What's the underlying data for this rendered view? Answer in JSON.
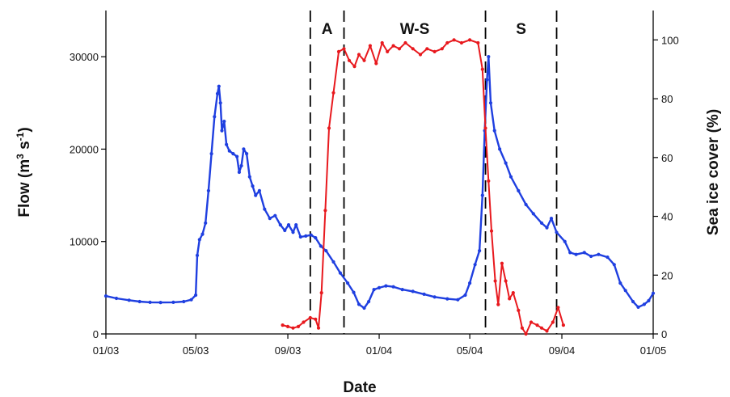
{
  "chart_data": {
    "type": "line",
    "xlabel": "Date",
    "ylabel_left": "Flow (m³ s⁻¹)",
    "ylabel_left_base": "Flow (m",
    "ylabel_left_sup1": "3",
    "ylabel_left_mid": " s",
    "ylabel_left_sup2": "-1",
    "ylabel_left_end": ")",
    "ylabel_right": "Sea ice cover (%)",
    "x_ticks": [
      "01/03",
      "05/03",
      "09/03",
      "01/04",
      "05/04",
      "09/04",
      "01/05"
    ],
    "x_tick_dates": [
      "2003-01-01",
      "2003-05-01",
      "2003-09-01",
      "2004-01-01",
      "2004-05-01",
      "2004-09-01",
      "2005-01-01"
    ],
    "xlim": [
      "2003-01-01",
      "2005-01-01"
    ],
    "y_left_ticks": [
      "0",
      "10000",
      "20000",
      "30000"
    ],
    "y_left_lim": [
      0,
      35000
    ],
    "y_right_ticks": [
      "0",
      "20",
      "40",
      "60",
      "80",
      "100"
    ],
    "y_right_lim": [
      0,
      110
    ],
    "grid": false,
    "periods": [
      {
        "label": "A",
        "start": "2003-10-01",
        "end": "2003-11-15"
      },
      {
        "label": "W-S",
        "start": "2003-11-15",
        "end": "2004-05-22"
      },
      {
        "label": "S",
        "start": "2004-05-22",
        "end": "2004-08-25"
      }
    ],
    "dividers": [
      "2003-10-01",
      "2003-11-15",
      "2004-05-22",
      "2004-08-25"
    ],
    "series": [
      {
        "name": "",
        "axis": "left",
        "color": "#1f3fe0",
        "marker": "dot",
        "points": [
          [
            "2003-01-01",
            4100
          ],
          [
            "2003-01-15",
            3850
          ],
          [
            "2003-02-01",
            3650
          ],
          [
            "2003-02-15",
            3500
          ],
          [
            "2003-03-01",
            3420
          ],
          [
            "2003-03-15",
            3400
          ],
          [
            "2003-04-01",
            3420
          ],
          [
            "2003-04-15",
            3500
          ],
          [
            "2003-04-25",
            3700
          ],
          [
            "2003-05-01",
            4200
          ],
          [
            "2003-05-03",
            8500
          ],
          [
            "2003-05-06",
            10200
          ],
          [
            "2003-05-10",
            10800
          ],
          [
            "2003-05-14",
            12000
          ],
          [
            "2003-05-18",
            15500
          ],
          [
            "2003-05-22",
            19500
          ],
          [
            "2003-05-26",
            23500
          ],
          [
            "2003-05-30",
            26000
          ],
          [
            "2003-06-01",
            26800
          ],
          [
            "2003-06-03",
            25000
          ],
          [
            "2003-06-05",
            22000
          ],
          [
            "2003-06-08",
            23000
          ],
          [
            "2003-06-11",
            20500
          ],
          [
            "2003-06-15",
            19800
          ],
          [
            "2003-06-20",
            19500
          ],
          [
            "2003-06-25",
            19200
          ],
          [
            "2003-06-28",
            17500
          ],
          [
            "2003-07-01",
            18200
          ],
          [
            "2003-07-04",
            20000
          ],
          [
            "2003-07-08",
            19500
          ],
          [
            "2003-07-12",
            17000
          ],
          [
            "2003-07-16",
            16000
          ],
          [
            "2003-07-20",
            15000
          ],
          [
            "2003-07-25",
            15500
          ],
          [
            "2003-08-01",
            13500
          ],
          [
            "2003-08-08",
            12500
          ],
          [
            "2003-08-15",
            12800
          ],
          [
            "2003-08-22",
            11800
          ],
          [
            "2003-08-28",
            11200
          ],
          [
            "2003-09-02",
            11800
          ],
          [
            "2003-09-08",
            11000
          ],
          [
            "2003-09-12",
            11800
          ],
          [
            "2003-09-18",
            10500
          ],
          [
            "2003-09-25",
            10600
          ],
          [
            "2003-10-02",
            10700
          ],
          [
            "2003-10-08",
            10400
          ],
          [
            "2003-10-15",
            9500
          ],
          [
            "2003-10-22",
            9000
          ],
          [
            "2003-11-01",
            7800
          ],
          [
            "2003-11-10",
            6600
          ],
          [
            "2003-11-20",
            5500
          ],
          [
            "2003-11-28",
            4500
          ],
          [
            "2003-12-05",
            3200
          ],
          [
            "2003-12-12",
            2800
          ],
          [
            "2003-12-18",
            3500
          ],
          [
            "2003-12-25",
            4800
          ],
          [
            "2004-01-01",
            5000
          ],
          [
            "2004-01-10",
            5200
          ],
          [
            "2004-01-20",
            5100
          ],
          [
            "2004-02-01",
            4800
          ],
          [
            "2004-02-15",
            4600
          ],
          [
            "2004-03-01",
            4300
          ],
          [
            "2004-03-15",
            4000
          ],
          [
            "2004-04-01",
            3800
          ],
          [
            "2004-04-15",
            3700
          ],
          [
            "2004-04-25",
            4200
          ],
          [
            "2004-05-01",
            5500
          ],
          [
            "2004-05-08",
            7500
          ],
          [
            "2004-05-14",
            9000
          ],
          [
            "2004-05-18",
            15000
          ],
          [
            "2004-05-21",
            22000
          ],
          [
            "2004-05-24",
            27500
          ],
          [
            "2004-05-26",
            30000
          ],
          [
            "2004-05-29",
            25000
          ],
          [
            "2004-06-03",
            22000
          ],
          [
            "2004-06-10",
            20000
          ],
          [
            "2004-06-18",
            18500
          ],
          [
            "2004-06-25",
            17000
          ],
          [
            "2004-07-05",
            15500
          ],
          [
            "2004-07-15",
            14000
          ],
          [
            "2004-07-25",
            13000
          ],
          [
            "2004-08-05",
            12000
          ],
          [
            "2004-08-12",
            11500
          ],
          [
            "2004-08-18",
            12500
          ],
          [
            "2004-08-25",
            11000
          ],
          [
            "2004-09-05",
            10000
          ],
          [
            "2004-09-12",
            8800
          ],
          [
            "2004-09-20",
            8600
          ],
          [
            "2004-10-01",
            8800
          ],
          [
            "2004-10-10",
            8400
          ],
          [
            "2004-10-20",
            8600
          ],
          [
            "2004-11-01",
            8300
          ],
          [
            "2004-11-10",
            7500
          ],
          [
            "2004-11-18",
            5500
          ],
          [
            "2004-11-25",
            4700
          ],
          [
            "2004-12-05",
            3500
          ],
          [
            "2004-12-12",
            2900
          ],
          [
            "2004-12-20",
            3200
          ],
          [
            "2004-12-26",
            3600
          ],
          [
            "2005-01-01",
            4400
          ]
        ]
      },
      {
        "name": "",
        "axis": "right",
        "color": "#e8191e",
        "marker": "dot",
        "points": [
          [
            "2003-08-25",
            3
          ],
          [
            "2003-09-01",
            2.5
          ],
          [
            "2003-09-08",
            2
          ],
          [
            "2003-09-15",
            2.5
          ],
          [
            "2003-09-22",
            4
          ],
          [
            "2003-10-01",
            5.5
          ],
          [
            "2003-10-08",
            5
          ],
          [
            "2003-10-12",
            2
          ],
          [
            "2003-10-16",
            14
          ],
          [
            "2003-10-21",
            42
          ],
          [
            "2003-10-26",
            70
          ],
          [
            "2003-11-01",
            82
          ],
          [
            "2003-11-08",
            96
          ],
          [
            "2003-11-15",
            97
          ],
          [
            "2003-11-22",
            93
          ],
          [
            "2003-11-29",
            91
          ],
          [
            "2003-12-05",
            95
          ],
          [
            "2003-12-12",
            93
          ],
          [
            "2003-12-20",
            98
          ],
          [
            "2003-12-28",
            92
          ],
          [
            "2004-01-05",
            99
          ],
          [
            "2004-01-12",
            96
          ],
          [
            "2004-01-20",
            98
          ],
          [
            "2004-01-28",
            97
          ],
          [
            "2004-02-05",
            99
          ],
          [
            "2004-02-15",
            97
          ],
          [
            "2004-02-25",
            95
          ],
          [
            "2004-03-05",
            97
          ],
          [
            "2004-03-15",
            96
          ],
          [
            "2004-03-25",
            97
          ],
          [
            "2004-04-01",
            99
          ],
          [
            "2004-04-10",
            100
          ],
          [
            "2004-04-20",
            99
          ],
          [
            "2004-05-01",
            100
          ],
          [
            "2004-05-12",
            99
          ],
          [
            "2004-05-18",
            90
          ],
          [
            "2004-05-22",
            70
          ],
          [
            "2004-05-26",
            52
          ],
          [
            "2004-05-30",
            35
          ],
          [
            "2004-06-04",
            18
          ],
          [
            "2004-06-08",
            10
          ],
          [
            "2004-06-13",
            24
          ],
          [
            "2004-06-18",
            18
          ],
          [
            "2004-06-23",
            12
          ],
          [
            "2004-06-28",
            14
          ],
          [
            "2004-07-05",
            8
          ],
          [
            "2004-07-10",
            2
          ],
          [
            "2004-07-15",
            0
          ],
          [
            "2004-07-22",
            4
          ],
          [
            "2004-07-30",
            3
          ],
          [
            "2004-08-05",
            2
          ],
          [
            "2004-08-12",
            1
          ],
          [
            "2004-08-20",
            4
          ],
          [
            "2004-08-27",
            9
          ],
          [
            "2004-09-03",
            3
          ]
        ]
      }
    ]
  }
}
